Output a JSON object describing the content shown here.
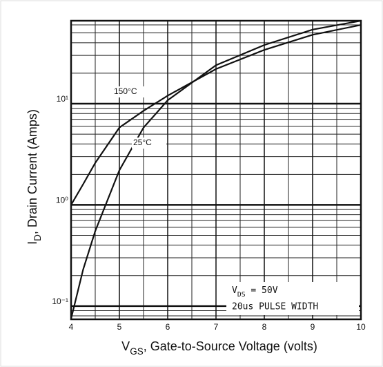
{
  "chart_data": {
    "type": "line",
    "xlabel": {
      "main": "V",
      "sub": "GS",
      "rest": ", Gate-to-Source Voltage (volts)"
    },
    "ylabel": {
      "main": "I",
      "sub": "D",
      "rest": ", Drain Current (Amps)"
    },
    "x": [
      4,
      4.25,
      4.5,
      5,
      5.5,
      6,
      7,
      8,
      9,
      10
    ],
    "series": [
      {
        "name": "150°C",
        "color": "#111111",
        "values": [
          1.0,
          1.6,
          2.6,
          5.8,
          8.5,
          12,
          22,
          34,
          48,
          60
        ]
      },
      {
        "name": "25°C",
        "color": "#111111",
        "values": [
          0.075,
          0.23,
          0.55,
          2.2,
          5.8,
          10.8,
          24,
          38,
          54,
          66
        ]
      }
    ],
    "annotations": [
      {
        "main": "V",
        "sub": "DS",
        "rest": " = 50V"
      },
      {
        "text": "20us PULSE WIDTH"
      }
    ],
    "xlim": [
      4,
      10
    ],
    "xticks": [
      4,
      5,
      6,
      7,
      8,
      9,
      10
    ],
    "ylim": [
      0.074,
      66
    ],
    "yticks": [
      {
        "value": 0.1,
        "label": "10⁻¹"
      },
      {
        "value": 1,
        "label": "10⁰"
      },
      {
        "value": 10,
        "label": "10¹"
      }
    ],
    "ylog": true,
    "grid": true,
    "minor_grid": true
  }
}
